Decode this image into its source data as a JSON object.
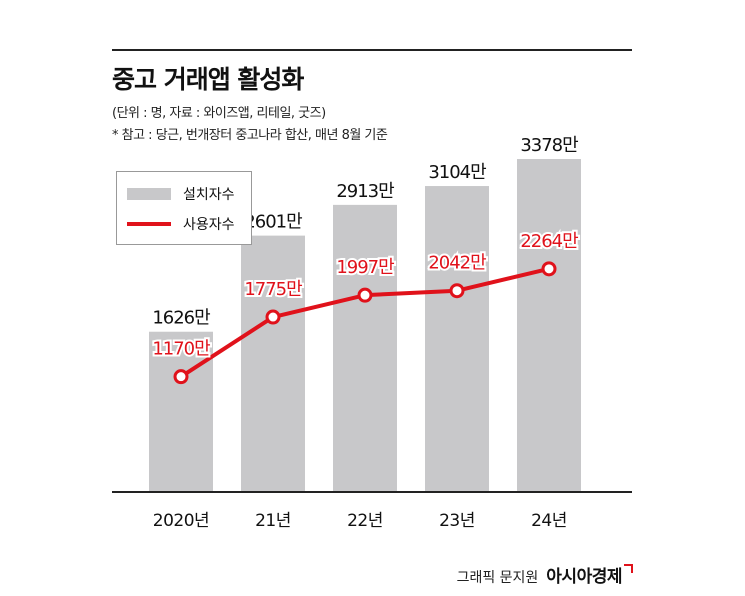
{
  "title": "중고 거래앱 활성화",
  "notes": [
    "(단위 : 명, 자료 : 와이즈앱, 리테일, 굿즈)",
    "* 참고 : 당근, 번개장터 중고나라 합산, 매년 8월 기준"
  ],
  "legend": {
    "bar_label": "설치자수",
    "line_label": "사용자수"
  },
  "credit": {
    "text": "그래픽 문지원",
    "brand": "아시아경제"
  },
  "colors": {
    "bar": "#c8c8ca",
    "line": "#e0121b",
    "axis": "#222222"
  },
  "chart_data": {
    "type": "bar",
    "categories": [
      "2020년",
      "21년",
      "22년",
      "23년",
      "24년"
    ],
    "series": [
      {
        "name": "설치자수",
        "type": "bar",
        "values": [
          1626,
          2601,
          2913,
          3104,
          3378
        ],
        "labels": [
          "1626만",
          "2601만",
          "2913만",
          "3104만",
          "3378만"
        ]
      },
      {
        "name": "사용자수",
        "type": "line",
        "values": [
          1170,
          1775,
          1997,
          2042,
          2264
        ],
        "labels": [
          "1170만",
          "1775만",
          "1997만",
          "2042만",
          "2264만"
        ]
      }
    ],
    "ylim": [
      0,
      3500
    ]
  }
}
